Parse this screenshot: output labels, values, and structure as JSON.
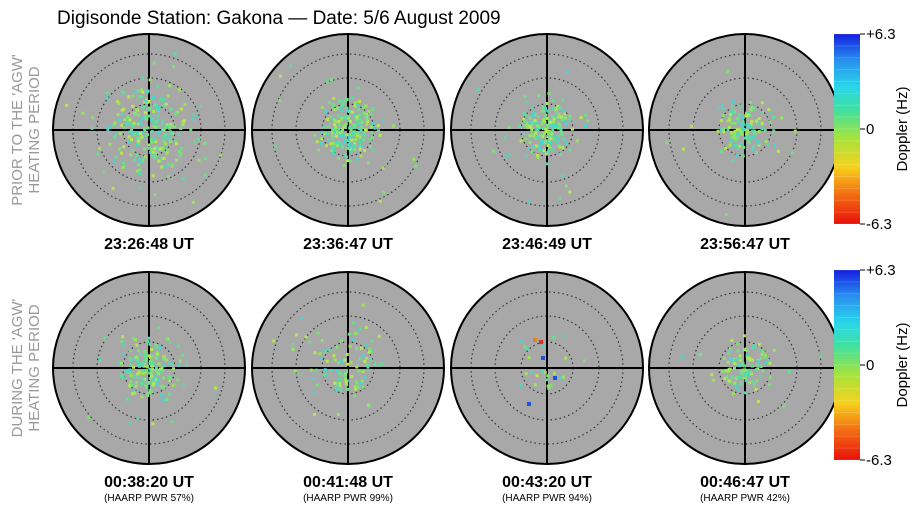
{
  "header": {
    "title": "Digisonde Station: Gakona — Date: 5/6 August 2009"
  },
  "rows": [
    {
      "label": [
        "PRIOR TO THE 'AGW'",
        "HEATING PERIOD"
      ],
      "panels": [
        {
          "time": "23:26:48 UT"
        },
        {
          "time": "23:36:47 UT"
        },
        {
          "time": "23:46:49 UT"
        },
        {
          "time": "23:56:47 UT"
        }
      ]
    },
    {
      "label": [
        "DURING THE 'AGW'",
        "HEATING PERIOD"
      ],
      "panels": [
        {
          "time": "00:38:20 UT",
          "power": "(HAARP PWR 57%)"
        },
        {
          "time": "00:41:48 UT",
          "power": "(HAARP PWR 99%)"
        },
        {
          "time": "00:43:20 UT",
          "power": "(HAARP PWR 94%)"
        },
        {
          "time": "00:46:47 UT",
          "power": "(HAARP PWR 42%)"
        }
      ]
    }
  ],
  "colorbar": {
    "label": "Doppler (Hz)",
    "ticks": [
      "+6.3",
      "0",
      "-6.3"
    ]
  }
}
